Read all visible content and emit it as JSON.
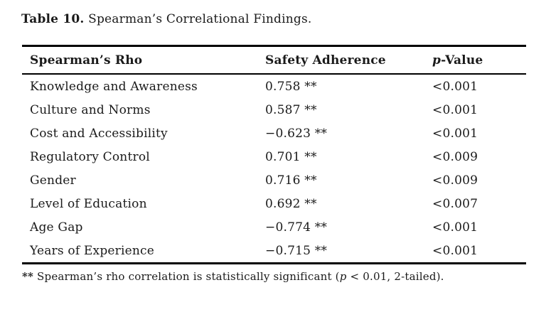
{
  "caption": {
    "label": "Table 10.",
    "text": " Spearman’s Correlational Findings."
  },
  "table": {
    "header": {
      "col1": "Spearman’s Rho",
      "col2": "Safety Adherence",
      "col3_italic": "p",
      "col3_rest": "-Value"
    },
    "rows": [
      {
        "variable": "Knowledge and Awareness",
        "safety_adherence": "0.758 **",
        "p_value": "<0.001"
      },
      {
        "variable": "Culture and Norms",
        "safety_adherence": "0.587 **",
        "p_value": "<0.001"
      },
      {
        "variable": "Cost and Accessibility",
        "safety_adherence": "−0.623 **",
        "p_value": "<0.001"
      },
      {
        "variable": "Regulatory Control",
        "safety_adherence": "0.701 **",
        "p_value": "<0.009"
      },
      {
        "variable": "Gender",
        "safety_adherence": "0.716 **",
        "p_value": "<0.009"
      },
      {
        "variable": "Level of Education",
        "safety_adherence": "0.692 **",
        "p_value": "<0.007"
      },
      {
        "variable": "Age Gap",
        "safety_adherence": "−0.774 **",
        "p_value": "<0.001"
      },
      {
        "variable": "Years of Experience",
        "safety_adherence": "−0.715 **",
        "p_value": "<0.001"
      }
    ],
    "rule_color": "#000000"
  },
  "footnote": {
    "marker": "**",
    "pre": " Spearman’s rho correlation is statistically significant (",
    "italic": "p",
    "post": " < 0.01, 2-tailed)."
  }
}
